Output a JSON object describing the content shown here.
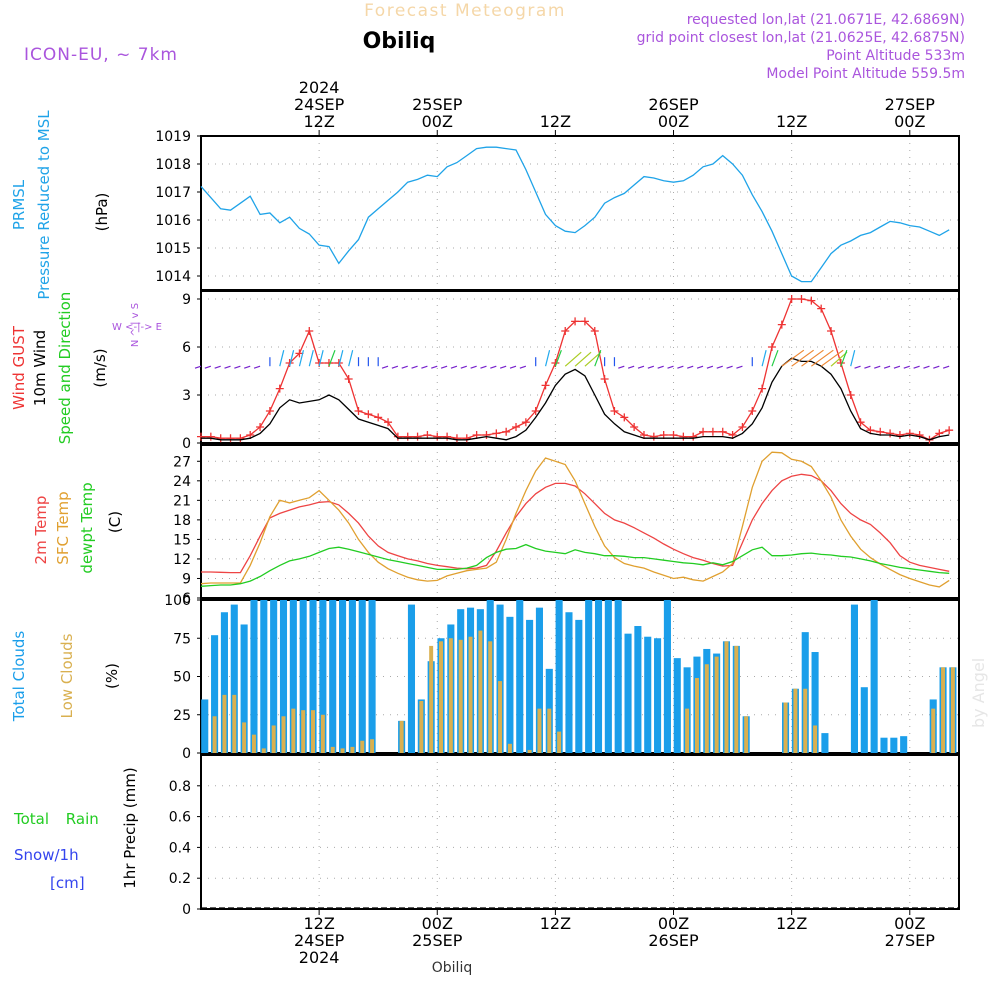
{
  "header": {
    "title": "Forecast Meteogram",
    "location": "Obiliq",
    "model": "ICON-EU, ~ 7km",
    "requested": "requested lon,lat (21.0671E, 42.6869N)",
    "grid_point": "grid point closest lon,lat (21.0625E, 42.6875N)",
    "point_altitude": "Point Altitude 533m",
    "model_altitude": "Model Point Altitude 559.5m",
    "footer_location": "Obiliq",
    "credit": "by Angel"
  },
  "time_axis": {
    "top_labels": [
      {
        "lines": [
          "2024",
          "24SEP",
          "12Z"
        ],
        "t": 12
      },
      {
        "lines": [
          "25SEP",
          "00Z"
        ],
        "t": 24
      },
      {
        "lines": [
          "12Z"
        ],
        "t": 36
      },
      {
        "lines": [
          "26SEP",
          "00Z"
        ],
        "t": 48
      },
      {
        "lines": [
          "12Z"
        ],
        "t": 60
      },
      {
        "lines": [
          "27SEP",
          "00Z"
        ],
        "t": 72
      }
    ],
    "bottom_labels": [
      {
        "lines": [
          "12Z",
          "24SEP",
          "2024"
        ],
        "t": 12
      },
      {
        "lines": [
          "00Z",
          "25SEP"
        ],
        "t": 24
      },
      {
        "lines": [
          "12Z"
        ],
        "t": 36
      },
      {
        "lines": [
          "00Z",
          "26SEP"
        ],
        "t": 48
      },
      {
        "lines": [
          "12Z"
        ],
        "t": 60
      },
      {
        "lines": [
          "00Z",
          "27SEP"
        ],
        "t": 72
      }
    ]
  },
  "panel_labels": {
    "pressure": {
      "lines": [
        "PRMSL",
        "Pressure Reduced to MSL"
      ],
      "unit": "(hPa)"
    },
    "wind": {
      "gust": "Wind GUST",
      "wind10": "10m Wind",
      "speed_dir": "Speed and Direction",
      "unit": "(m/s)",
      "compass_ns": "N ^ | v S",
      "compass_we": "W <-|-> E"
    },
    "temp": {
      "t2m": "2m Temp",
      "sfc": "SFC Temp",
      "dewpt": "dewpt Temp",
      "unit": "(C)"
    },
    "clouds": {
      "total": "Total Clouds",
      "low": "Low Clouds",
      "unit": "(%)"
    },
    "precip": {
      "rain": "Total Rain",
      "snow": "Snow/1h",
      "snow_unit": "[cm]",
      "ylabel": "1hr Precip (mm)"
    }
  },
  "colors": {
    "pressure": "#1fa3e8",
    "gust": "#ee3333",
    "wind10": "#000000",
    "t2m": "#ee4444",
    "sfc": "#e0a030",
    "dewpt": "#22cc22",
    "total_clouds": "#1a9eea",
    "low_clouds": "#d9b050",
    "purple": "#aa55dd",
    "rain": "#22cc22",
    "snow": "#3344ee"
  },
  "chart_data": [
    {
      "type": "line",
      "name": "PRMSL",
      "ylim": [
        1013.5,
        1019
      ],
      "yticks": [
        1014,
        1015,
        1016,
        1017,
        1018,
        1019
      ],
      "x": [
        0,
        1,
        2,
        3,
        4,
        5,
        6,
        7,
        8,
        9,
        10,
        11,
        12,
        13,
        14,
        15,
        16,
        17,
        18,
        19,
        20,
        21,
        22,
        23,
        24,
        25,
        26,
        27,
        28,
        29,
        30,
        31,
        32,
        33,
        34,
        35,
        36,
        37,
        38,
        39,
        40,
        41,
        42,
        43,
        44,
        45,
        46,
        47,
        48,
        49,
        50,
        51,
        52,
        53,
        54,
        55,
        56,
        57,
        58,
        59,
        60,
        61,
        62,
        63,
        64,
        65,
        66,
        67,
        68,
        69,
        70,
        71,
        72,
        73,
        74,
        75,
        76
      ],
      "values": [
        1017.2,
        1016.8,
        1016.4,
        1016.35,
        1016.6,
        1016.85,
        1016.2,
        1016.25,
        1015.9,
        1016.1,
        1015.7,
        1015.5,
        1015.1,
        1015.05,
        1014.45,
        1014.9,
        1015.3,
        1016.1,
        1016.4,
        1016.7,
        1017.0,
        1017.35,
        1017.45,
        1017.6,
        1017.55,
        1017.9,
        1018.05,
        1018.3,
        1018.55,
        1018.6,
        1018.6,
        1018.55,
        1018.5,
        1017.8,
        1017.0,
        1016.2,
        1015.8,
        1015.6,
        1015.55,
        1015.8,
        1016.1,
        1016.6,
        1016.8,
        1016.95,
        1017.25,
        1017.55,
        1017.5,
        1017.4,
        1017.35,
        1017.4,
        1017.6,
        1017.9,
        1018.0,
        1018.3,
        1018.0,
        1017.6,
        1016.9,
        1016.3,
        1015.6,
        1014.8,
        1014.0,
        1013.8,
        1013.8,
        1014.3,
        1014.8,
        1015.1,
        1015.25,
        1015.45,
        1015.55,
        1015.75,
        1015.95,
        1015.9,
        1015.8,
        1015.75,
        1015.6,
        1015.45,
        1015.65
      ]
    },
    {
      "type": "line",
      "name": "Wind",
      "ylim": [
        0,
        9.5
      ],
      "yticks": [
        0,
        3,
        6,
        9
      ],
      "x": [
        0,
        1,
        2,
        3,
        4,
        5,
        6,
        7,
        8,
        9,
        10,
        11,
        12,
        13,
        14,
        15,
        16,
        17,
        18,
        19,
        20,
        21,
        22,
        23,
        24,
        25,
        26,
        27,
        28,
        29,
        30,
        31,
        32,
        33,
        34,
        35,
        36,
        37,
        38,
        39,
        40,
        41,
        42,
        43,
        44,
        45,
        46,
        47,
        48,
        49,
        50,
        51,
        52,
        53,
        54,
        55,
        56,
        57,
        58,
        59,
        60,
        61,
        62,
        63,
        64,
        65,
        66,
        67,
        68,
        69,
        70,
        71,
        72,
        73,
        74,
        75,
        76
      ],
      "series": [
        {
          "name": "Wind GUST",
          "values": [
            0.4,
            0.4,
            0.3,
            0.3,
            0.3,
            0.5,
            1.0,
            2.0,
            3.4,
            5.0,
            5.6,
            7.0,
            5.0,
            5.0,
            5.0,
            4.0,
            2.0,
            1.8,
            1.6,
            1.3,
            0.4,
            0.4,
            0.4,
            0.5,
            0.4,
            0.4,
            0.3,
            0.3,
            0.5,
            0.5,
            0.6,
            0.7,
            1.0,
            1.3,
            2.0,
            3.6,
            5.0,
            7.0,
            7.6,
            7.6,
            7.0,
            4.0,
            2.0,
            1.6,
            1.0,
            0.5,
            0.4,
            0.5,
            0.5,
            0.4,
            0.4,
            0.7,
            0.7,
            0.7,
            0.5,
            1.0,
            2.0,
            3.4,
            6.0,
            7.4,
            9.0,
            9.0,
            8.9,
            8.4,
            7.0,
            5.0,
            3.0,
            1.3,
            0.8,
            0.7,
            0.6,
            0.5,
            0.6,
            0.5,
            0.2,
            0.6,
            0.8
          ]
        },
        {
          "name": "10m Wind",
          "values": [
            0.3,
            0.3,
            0.2,
            0.2,
            0.2,
            0.3,
            0.6,
            1.2,
            2.2,
            2.7,
            2.5,
            2.6,
            2.7,
            3.0,
            2.7,
            2.1,
            1.5,
            1.3,
            1.1,
            0.9,
            0.3,
            0.3,
            0.3,
            0.3,
            0.3,
            0.3,
            0.2,
            0.2,
            0.3,
            0.4,
            0.3,
            0.2,
            0.4,
            0.8,
            1.6,
            2.5,
            3.6,
            4.3,
            4.6,
            4.2,
            3.0,
            1.8,
            1.2,
            0.7,
            0.5,
            0.3,
            0.3,
            0.3,
            0.3,
            0.3,
            0.3,
            0.4,
            0.4,
            0.4,
            0.3,
            0.6,
            1.2,
            2.2,
            3.8,
            4.8,
            5.3,
            5.1,
            5.1,
            4.8,
            4.3,
            3.4,
            2.0,
            0.9,
            0.6,
            0.5,
            0.5,
            0.4,
            0.5,
            0.4,
            0.2,
            0.4,
            0.5
          ]
        }
      ]
    },
    {
      "type": "line",
      "name": "Temperature",
      "ylim": [
        6,
        29.5
      ],
      "yticks": [
        6,
        9,
        12,
        15,
        18,
        21,
        24,
        27
      ],
      "x": [
        0,
        1,
        2,
        3,
        4,
        5,
        6,
        7,
        8,
        9,
        10,
        11,
        12,
        13,
        14,
        15,
        16,
        17,
        18,
        19,
        20,
        21,
        22,
        23,
        24,
        25,
        26,
        27,
        28,
        29,
        30,
        31,
        32,
        33,
        34,
        35,
        36,
        37,
        38,
        39,
        40,
        41,
        42,
        43,
        44,
        45,
        46,
        47,
        48,
        49,
        50,
        51,
        52,
        53,
        54,
        55,
        56,
        57,
        58,
        59,
        60,
        61,
        62,
        63,
        64,
        65,
        66,
        67,
        68,
        69,
        70,
        71,
        72,
        73,
        74,
        75,
        76
      ],
      "series": [
        {
          "name": "2m Temp",
          "values": [
            10.0,
            10.0,
            9.95,
            9.9,
            9.9,
            12.5,
            15.5,
            18.3,
            19.0,
            19.5,
            20.0,
            20.3,
            20.7,
            20.8,
            20.3,
            19.0,
            17.5,
            15.5,
            14.0,
            13.0,
            12.5,
            12.0,
            11.7,
            11.3,
            11.0,
            10.8,
            10.6,
            10.5,
            10.6,
            11.0,
            13.2,
            16.0,
            18.5,
            20.5,
            22.0,
            23.0,
            23.6,
            23.6,
            23.2,
            22.0,
            20.5,
            19.0,
            18.0,
            17.5,
            16.8,
            16.0,
            15.2,
            14.3,
            13.5,
            12.8,
            12.2,
            11.8,
            11.3,
            10.9,
            11.0,
            14.5,
            18.0,
            20.5,
            22.5,
            24.0,
            24.7,
            25.0,
            24.8,
            24.0,
            22.5,
            20.5,
            19.0,
            18.0,
            17.3,
            16.0,
            14.5,
            12.5,
            11.5,
            11.0,
            10.7,
            10.4,
            10.1
          ]
        },
        {
          "name": "SFC Temp",
          "values": [
            8.2,
            8.3,
            8.3,
            8.3,
            8.3,
            11.0,
            14.5,
            18.5,
            21.0,
            20.6,
            21.0,
            21.4,
            22.5,
            21.0,
            19.5,
            17.5,
            15.0,
            13.0,
            11.5,
            10.5,
            9.8,
            9.2,
            8.8,
            8.6,
            8.7,
            9.4,
            9.8,
            10.2,
            10.4,
            10.6,
            11.5,
            15.0,
            19.0,
            22.5,
            25.5,
            27.5,
            27.0,
            26.5,
            24.0,
            20.5,
            17.0,
            14.0,
            12.2,
            11.3,
            10.9,
            10.6,
            10.0,
            9.5,
            9.0,
            9.2,
            8.8,
            8.6,
            9.3,
            10.0,
            11.3,
            17.0,
            23.0,
            27.0,
            28.4,
            28.3,
            27.3,
            27.0,
            26.2,
            24.0,
            21.5,
            18.0,
            15.5,
            13.5,
            12.2,
            11.2,
            10.4,
            9.6,
            9.0,
            8.5,
            8.0,
            7.7,
            8.7
          ]
        },
        {
          "name": "dewpt Temp",
          "values": [
            7.8,
            7.9,
            8.0,
            8.0,
            8.2,
            8.6,
            9.3,
            10.2,
            11.0,
            11.7,
            12.0,
            12.4,
            13.0,
            13.6,
            13.8,
            13.5,
            13.1,
            12.7,
            12.3,
            11.9,
            11.6,
            11.3,
            11.0,
            10.7,
            10.4,
            10.4,
            10.4,
            10.6,
            11.0,
            12.2,
            13.0,
            13.5,
            13.6,
            14.2,
            13.6,
            13.2,
            13.0,
            12.8,
            13.4,
            13.0,
            12.8,
            12.5,
            12.5,
            12.4,
            12.2,
            12.2,
            12.0,
            11.8,
            11.6,
            11.4,
            11.3,
            11.1,
            11.4,
            11.1,
            11.6,
            12.5,
            13.4,
            13.8,
            12.5,
            12.5,
            12.6,
            12.8,
            12.9,
            12.7,
            12.6,
            12.4,
            12.3,
            12.0,
            11.7,
            11.3,
            11.0,
            10.7,
            10.5,
            10.3,
            10.1,
            9.9,
            9.8
          ]
        }
      ]
    },
    {
      "type": "bar",
      "name": "Clouds",
      "ylim": [
        0,
        100
      ],
      "yticks": [
        0,
        25,
        50,
        75,
        100
      ],
      "x": [
        0,
        1,
        2,
        3,
        4,
        5,
        6,
        7,
        8,
        9,
        10,
        11,
        12,
        13,
        14,
        15,
        16,
        17,
        18,
        19,
        20,
        21,
        22,
        23,
        24,
        25,
        26,
        27,
        28,
        29,
        30,
        31,
        32,
        33,
        34,
        35,
        36,
        37,
        38,
        39,
        40,
        41,
        42,
        43,
        44,
        45,
        46,
        47,
        48,
        49,
        50,
        51,
        52,
        53,
        54,
        55,
        56,
        57,
        58,
        59,
        60,
        61,
        62,
        63,
        64,
        65,
        66,
        67,
        68,
        69,
        70,
        71,
        72,
        73,
        74,
        75,
        76
      ],
      "series": [
        {
          "name": "Total Clouds",
          "values": [
            35,
            77,
            92,
            97,
            84,
            100,
            100,
            100,
            100,
            100,
            100,
            100,
            100,
            100,
            100,
            100,
            100,
            100,
            0,
            0,
            21,
            97,
            35,
            60,
            75,
            84,
            94,
            95,
            94,
            100,
            97,
            89,
            100,
            87,
            95,
            55,
            100,
            92,
            87,
            100,
            100,
            100,
            100,
            78,
            83,
            76,
            75,
            100,
            62,
            56,
            63,
            68,
            65,
            73,
            70,
            24,
            0,
            0,
            0,
            33,
            42,
            79,
            66,
            13,
            0,
            0,
            97,
            43,
            100,
            10,
            10,
            11,
            0,
            0,
            35,
            56,
            56
          ]
        },
        {
          "name": "Low Clouds",
          "values": [
            0,
            24,
            38,
            38,
            20,
            12,
            3,
            18,
            24,
            29,
            28,
            28,
            25,
            4,
            3,
            4,
            8,
            9,
            0,
            0,
            21,
            0,
            34,
            70,
            73,
            75,
            74,
            76,
            80,
            73,
            47,
            6,
            0,
            2,
            29,
            29,
            14,
            0,
            0,
            0,
            0,
            0,
            0,
            0,
            0,
            0,
            0,
            0,
            0,
            29,
            49,
            58,
            63,
            73,
            70,
            24,
            0,
            0,
            0,
            33,
            42,
            42,
            18,
            0,
            0,
            0,
            0,
            0,
            0,
            0,
            0,
            0,
            0,
            0,
            29,
            56,
            56
          ]
        }
      ]
    },
    {
      "type": "bar",
      "name": "1hr Precip",
      "ylim": [
        0,
        1.0
      ],
      "yticks": [
        0,
        0.2,
        0.4,
        0.6,
        0.8
      ],
      "series": [
        {
          "name": "Total Rain",
          "values": []
        },
        {
          "name": "Snow/1h",
          "values": []
        }
      ]
    }
  ]
}
